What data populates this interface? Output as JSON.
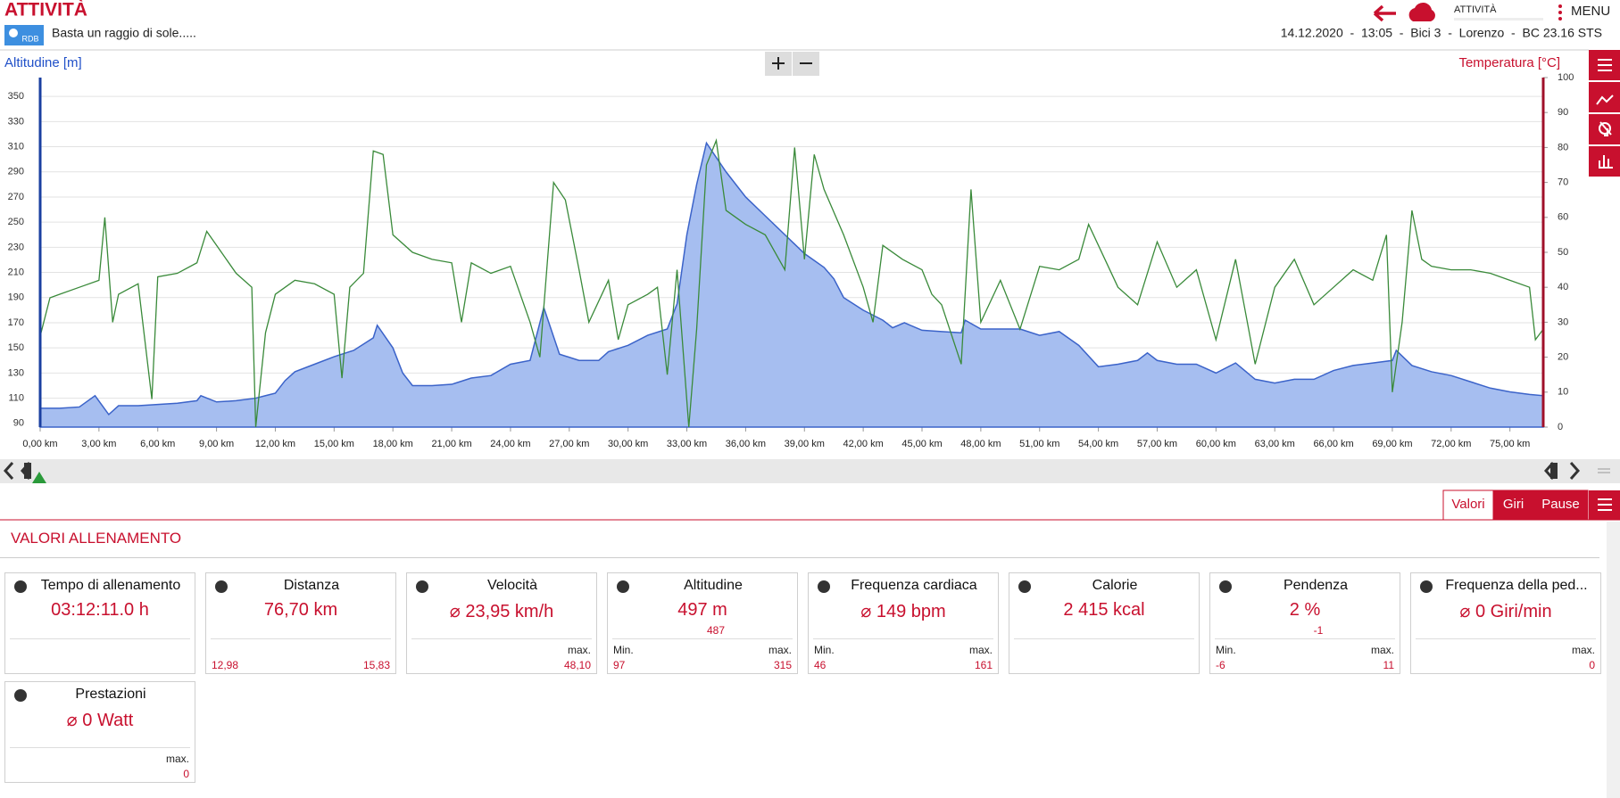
{
  "header": {
    "title": "ATTIVITÀ",
    "logo": "RDB",
    "activity_name": "Basta un raggio di sole.....",
    "info": "14.12.2020  -  13:05  -  Bici 3  -  Lorenzo  -  BC 23.16 STS",
    "sync_label": "ATTIVITÀ",
    "menu": "MENU"
  },
  "chart_data": {
    "type": "combo",
    "y_label": "Altitudine [m]",
    "y2_label": "Temperatura [°C]",
    "xlim": [
      0,
      76.7
    ],
    "ylim": [
      87,
      365
    ],
    "y2lim": [
      0,
      100
    ],
    "grid": true,
    "xticks": [
      {
        "value": 0,
        "label": "0,00 km"
      },
      {
        "value": 3,
        "label": "3,00 km"
      },
      {
        "value": 6,
        "label": "6,00 km"
      },
      {
        "value": 9,
        "label": "9,00 km"
      },
      {
        "value": 12,
        "label": "12,00 km"
      },
      {
        "value": 15,
        "label": "15,00 km"
      },
      {
        "value": 18,
        "label": "18,00 km"
      },
      {
        "value": 21,
        "label": "21,00 km"
      },
      {
        "value": 24,
        "label": "24,00 km"
      },
      {
        "value": 27,
        "label": "27,00 km"
      },
      {
        "value": 30,
        "label": "30,00 km"
      },
      {
        "value": 33,
        "label": "33,00 km"
      },
      {
        "value": 36,
        "label": "36,00 km"
      },
      {
        "value": 39,
        "label": "39,00 km"
      },
      {
        "value": 42,
        "label": "42,00 km"
      },
      {
        "value": 45,
        "label": "45,00 km"
      },
      {
        "value": 48,
        "label": "48,00 km"
      },
      {
        "value": 51,
        "label": "51,00 km"
      },
      {
        "value": 54,
        "label": "54,00 km"
      },
      {
        "value": 57,
        "label": "57,00 km"
      },
      {
        "value": 60,
        "label": "60,00 km"
      },
      {
        "value": 63,
        "label": "63,00 km"
      },
      {
        "value": 66,
        "label": "66,00 km"
      },
      {
        "value": 69,
        "label": "69,00 km"
      },
      {
        "value": 72,
        "label": "72,00 km"
      },
      {
        "value": 75,
        "label": "75,00 km"
      }
    ],
    "yticks": [
      90,
      110,
      130,
      150,
      170,
      190,
      210,
      230,
      250,
      270,
      290,
      310,
      330,
      350
    ],
    "y2ticks": [
      0,
      10,
      20,
      30,
      40,
      50,
      60,
      70,
      80,
      90,
      100
    ],
    "series": [
      {
        "name": "Altitudine",
        "type": "area",
        "color": "#3b63c9",
        "fill": "#a6bef0",
        "x": [
          0,
          1,
          2,
          2.8,
          3.5,
          4,
          5,
          6,
          7,
          8,
          8.2,
          9,
          10,
          11,
          11.5,
          12,
          12.5,
          13,
          14,
          15,
          16,
          17,
          17.2,
          18,
          18.5,
          19,
          20,
          21,
          22,
          23,
          24,
          25,
          25.7,
          26.5,
          27.5,
          28.5,
          29,
          30,
          31,
          32,
          32.5,
          33,
          33.5,
          34,
          35,
          36,
          37,
          38,
          39,
          40,
          40.5,
          41,
          42,
          43,
          43.5,
          44.1,
          45,
          46,
          47,
          47.2,
          48,
          49,
          50,
          51,
          52,
          53,
          54,
          55,
          56,
          56.5,
          57,
          58,
          59,
          60,
          61,
          62,
          63,
          64,
          65,
          66,
          67,
          68,
          69,
          69.2,
          70,
          71,
          72,
          73,
          74,
          75,
          76,
          76.7
        ],
        "values": [
          102,
          102,
          103,
          112,
          97,
          104,
          104,
          105,
          106,
          108,
          112,
          107,
          108,
          110,
          112,
          114,
          124,
          131,
          137,
          143,
          148,
          158,
          168,
          150,
          130,
          120,
          120,
          121,
          126,
          128,
          137,
          140,
          182,
          145,
          140,
          140,
          147,
          152,
          160,
          165,
          185,
          240,
          280,
          313,
          290,
          270,
          255,
          240,
          225,
          214,
          205,
          190,
          180,
          172,
          166,
          170,
          164,
          163,
          162,
          172,
          165,
          165,
          165,
          160,
          163,
          152,
          135,
          137,
          140,
          146,
          140,
          137,
          137,
          130,
          138,
          125,
          122,
          125,
          125,
          132,
          136,
          138,
          140,
          148,
          136,
          131,
          128,
          123,
          118,
          115,
          113,
          112
        ]
      },
      {
        "name": "Temperatura",
        "type": "line",
        "axis": "y2",
        "color": "#3a8a3a",
        "x": [
          0,
          0.5,
          1,
          2,
          3,
          3.3,
          3.7,
          4,
          5,
          5.7,
          6,
          7,
          8,
          8.5,
          9,
          10,
          10.8,
          11,
          11.5,
          12,
          13,
          14,
          15,
          15.4,
          15.8,
          16.5,
          17,
          17.5,
          18,
          19,
          20,
          21,
          21.5,
          22,
          23,
          24,
          25,
          25.5,
          26.2,
          26.8,
          27.5,
          28,
          29,
          29.5,
          30,
          31,
          31.5,
          32,
          32.5,
          33.1,
          33.5,
          34,
          34.5,
          35,
          36,
          37,
          38,
          38.5,
          39,
          39.5,
          40,
          41,
          42,
          42.5,
          43,
          44,
          45,
          45.5,
          46,
          47,
          47.5,
          48,
          49,
          50,
          51,
          52,
          53,
          53.5,
          55,
          56,
          57,
          58,
          59,
          60,
          61,
          62,
          63,
          64,
          65,
          66,
          67,
          68,
          68.7,
          69,
          69.5,
          70,
          70.5,
          71,
          72,
          73,
          74,
          75,
          76,
          76.3,
          76.7
        ],
        "values": [
          26,
          37,
          38,
          40,
          42,
          60,
          30,
          38,
          41,
          8,
          43,
          44,
          47,
          56,
          52,
          44,
          40,
          0,
          27,
          38,
          42,
          41,
          38,
          14,
          40,
          44,
          79,
          78,
          55,
          50,
          48,
          47,
          30,
          47,
          44,
          46,
          30,
          20,
          70,
          65,
          45,
          30,
          42,
          25,
          35,
          38,
          40,
          15,
          45,
          0,
          28,
          75,
          82,
          62,
          58,
          55,
          45,
          80,
          48,
          78,
          68,
          55,
          40,
          30,
          52,
          48,
          45,
          38,
          35,
          18,
          68,
          30,
          42,
          28,
          46,
          45,
          48,
          58,
          40,
          35,
          53,
          40,
          45,
          25,
          48,
          18,
          40,
          48,
          35,
          40,
          45,
          42,
          55,
          10,
          30,
          62,
          48,
          46,
          45,
          45,
          44,
          42,
          40,
          25,
          28
        ]
      }
    ]
  },
  "tabs": [
    "Valori",
    "Giri",
    "Pause"
  ],
  "section_title": "VALORI ALLENAMENTO",
  "cards": [
    {
      "title": "Tempo di allenamento",
      "value": "03:12:11.0 h"
    },
    {
      "title": "Distanza",
      "value": "76,70 km",
      "left_value": "12,98",
      "right_value": "15,83"
    },
    {
      "title": "Velocità",
      "value": "⌀ 23,95 km/h",
      "right_label": "max.",
      "right_value": "48,10"
    },
    {
      "title": "Altitudine",
      "value": "497 m",
      "sub": "487",
      "left_label": "Min.",
      "left_value": "97",
      "right_label": "max.",
      "right_value": "315"
    },
    {
      "title": "Frequenza cardiaca",
      "value": "⌀ 149 bpm",
      "left_label": "Min.",
      "left_value": "46",
      "right_label": "max.",
      "right_value": "161"
    },
    {
      "title": "Calorie",
      "value": "2 415 kcal"
    },
    {
      "title": "Pendenza",
      "value": "2 %",
      "sub": "-1",
      "left_label": "Min.",
      "left_value": "-6",
      "right_label": "max.",
      "right_value": "11"
    },
    {
      "title": "Frequenza della ped...",
      "value": "⌀ 0 Giri/min",
      "right_label": "max.",
      "right_value": "0"
    },
    {
      "title": "Prestazioni",
      "value": "⌀ 0 Watt",
      "right_label": "max.",
      "right_value": "0"
    }
  ]
}
